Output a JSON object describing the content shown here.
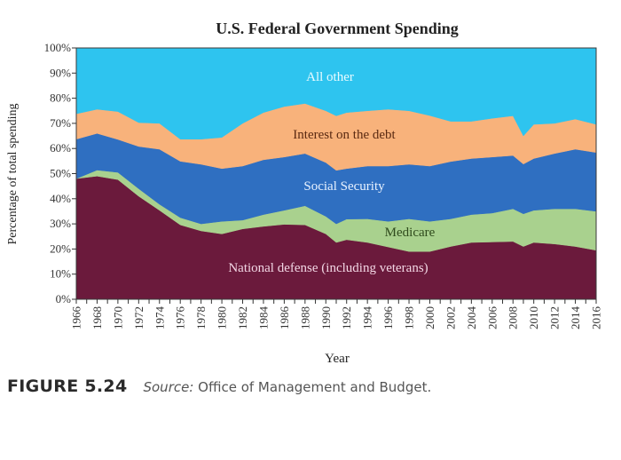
{
  "chart_data": {
    "type": "area",
    "stacked": true,
    "title": "U.S. Federal Government Spending",
    "xlabel": "Year",
    "ylabel": "Percentage of total spending",
    "ylim": [
      0,
      100
    ],
    "xlim": [
      1966,
      2016
    ],
    "y_ticks": [
      "0%",
      "10%",
      "20%",
      "30%",
      "40%",
      "50%",
      "60%",
      "70%",
      "80%",
      "90%",
      "100%"
    ],
    "x_ticks": [
      "1966",
      "1968",
      "1970",
      "1972",
      "1974",
      "1976",
      "1978",
      "1980",
      "1982",
      "1984",
      "1986",
      "1988",
      "1990",
      "1992",
      "1994",
      "1996",
      "1998",
      "2000",
      "2002",
      "2004",
      "2006",
      "2008",
      "2010",
      "2012",
      "2014",
      "2016"
    ],
    "grid": false,
    "legend": "inline labels",
    "x": [
      1966,
      1968,
      1970,
      1972,
      1974,
      1976,
      1978,
      1980,
      1982,
      1984,
      1986,
      1988,
      1990,
      1991,
      1992,
      1994,
      1996,
      1998,
      2000,
      2002,
      2004,
      2006,
      2008,
      2009,
      2010,
      2012,
      2014,
      2016
    ],
    "series": [
      {
        "name": "National defense (including veterans)",
        "color": "#6b1a3c",
        "label_color": "#f2d6e4",
        "values": [
          48,
          49,
          47.6,
          41,
          35.4,
          29.6,
          27.2,
          26,
          28,
          29,
          29.8,
          29.6,
          26,
          22.6,
          23.7,
          22.6,
          20.8,
          19,
          19,
          21,
          22.6,
          22.8,
          23,
          21,
          22.6,
          22,
          21,
          19.5
        ]
      },
      {
        "name": "Medicare",
        "color": "#a9d18e",
        "label_color": "#2f4a1c",
        "values": [
          0,
          2.4,
          2.9,
          3,
          2.4,
          2.9,
          2.8,
          5,
          3.5,
          4.7,
          5.6,
          7.6,
          7,
          7.4,
          8.2,
          9.4,
          10.2,
          13,
          12,
          11,
          11.1,
          11.5,
          13,
          13,
          12.8,
          14,
          15,
          15.5
        ]
      },
      {
        "name": "Social Security",
        "color": "#2f6fc1",
        "label_color": "#e8f2ff",
        "values": [
          15.7,
          14.6,
          13.1,
          16.8,
          21.9,
          22.4,
          23.7,
          21,
          21.5,
          21.8,
          21.2,
          20.8,
          21.4,
          21.3,
          20.1,
          21,
          22,
          21.7,
          22,
          22.8,
          22.3,
          22.3,
          21.2,
          19.8,
          20.6,
          22,
          23.7,
          23.4
        ]
      },
      {
        "name": "Interest on the debt",
        "color": "#f8b27b",
        "label_color": "#5a2a12",
        "values": [
          10.1,
          9.6,
          11.1,
          9.5,
          10.3,
          8.8,
          10,
          12.4,
          17,
          18.8,
          20.1,
          19.9,
          20.6,
          21.7,
          22.3,
          22,
          22.6,
          21.3,
          20.1,
          16,
          14.8,
          15.4,
          15.8,
          11.2,
          13.6,
          12,
          12,
          11.2
        ]
      },
      {
        "name": "All other",
        "color": "#2ec4ef",
        "label_color": "#e9fbff",
        "values": [
          26.2,
          24.4,
          25.3,
          29.7,
          30,
          36.3,
          36.3,
          35.6,
          30,
          25.7,
          23.3,
          22.1,
          25,
          27,
          25.7,
          25,
          24.4,
          25,
          26.9,
          29.2,
          29.2,
          28,
          27,
          35,
          30.4,
          30,
          28.3,
          30.4
        ]
      }
    ]
  },
  "caption": {
    "figure": "FIGURE 5.24",
    "source_label": "Source:",
    "source_text": " Office of Management and Budget."
  }
}
